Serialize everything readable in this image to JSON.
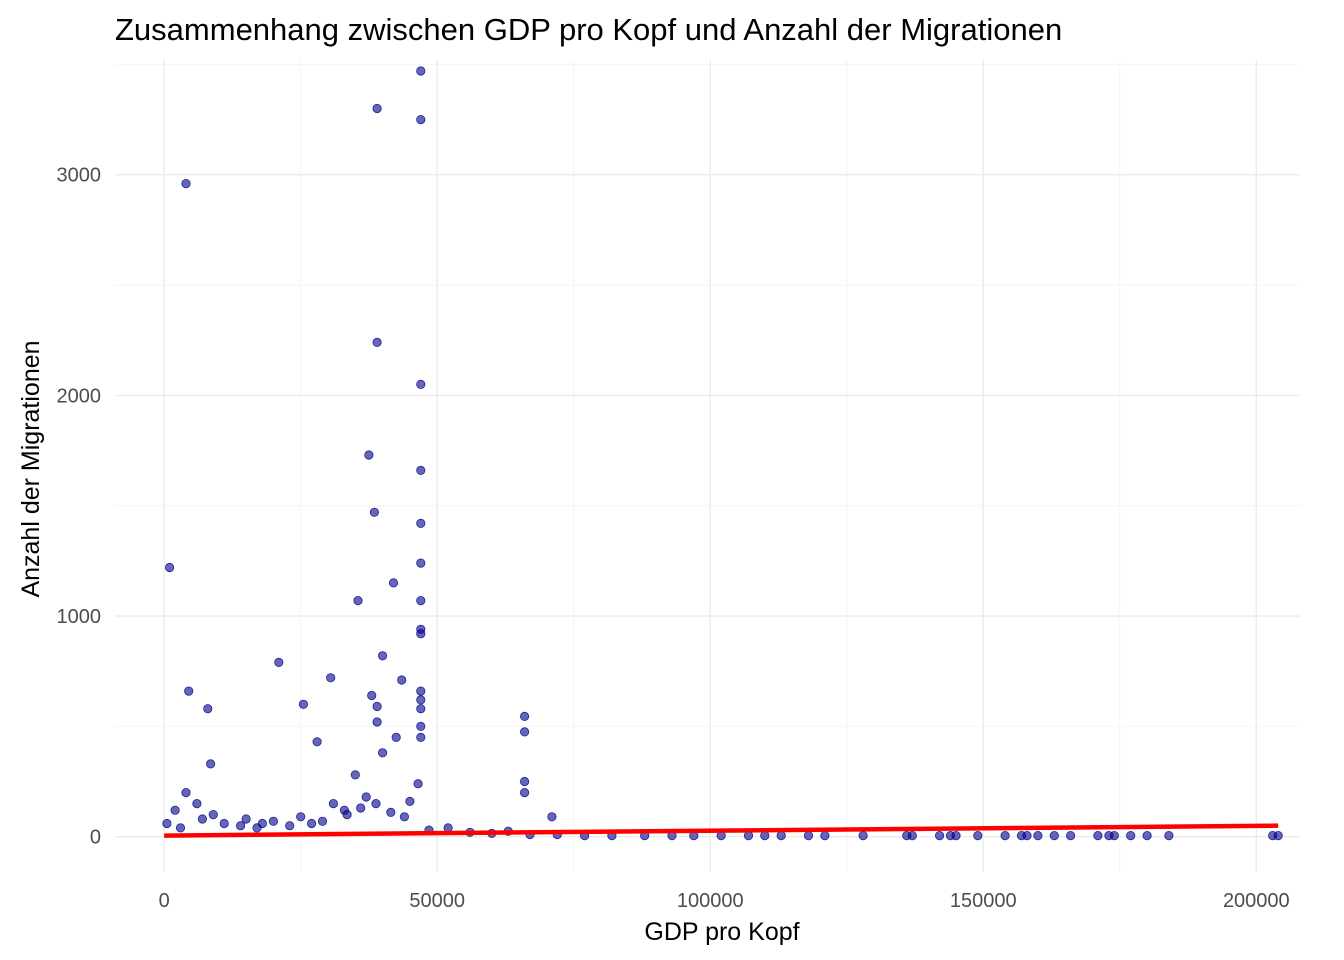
{
  "chart_data": {
    "type": "scatter",
    "title": "Zusammenhang zwischen GDP pro Kopf und Anzahl der Migrationen",
    "xlabel": "GDP pro Kopf",
    "ylabel": "Anzahl der Migrationen",
    "xlim": [
      -9000,
      208000
    ],
    "ylim": [
      -160,
      3520
    ],
    "x_ticks": [
      0,
      50000,
      100000,
      150000,
      200000
    ],
    "x_tick_labels": [
      "0",
      "50000",
      "100000",
      "150000",
      "200000"
    ],
    "y_ticks": [
      0,
      1000,
      2000,
      3000
    ],
    "y_tick_labels": [
      "0",
      "1000",
      "2000",
      "3000"
    ],
    "x_minor_ticks": [
      25000,
      75000,
      125000,
      175000
    ],
    "y_minor_ticks": [
      500,
      1500,
      2500,
      3500
    ],
    "grid": true,
    "legend": "none",
    "point_color": "#00008B",
    "point_opacity": 0.6,
    "trend_color": "#FF0000",
    "series": [
      {
        "values_x": [
          4000,
          1000,
          8000,
          8500,
          4500,
          21000,
          25500,
          30500,
          28000,
          38000,
          39000,
          37500,
          38500,
          39000,
          40000,
          42000,
          43500,
          35500,
          39000,
          42500,
          39000,
          47000,
          47000,
          47000,
          47000,
          47000,
          47000,
          47000,
          47000,
          47000,
          47000,
          47000,
          47000,
          47000,
          47000,
          66000,
          66000,
          66000,
          66000,
          71000,
          2000,
          4000,
          6000,
          9000,
          15000,
          18000,
          20000,
          25000,
          31000,
          33000,
          35000,
          37000,
          40000,
          45000,
          52000,
          56000,
          60000,
          63000,
          67000,
          72000,
          77000,
          82000,
          88000,
          93000,
          97000,
          102000,
          107000,
          110000,
          113000,
          118000,
          121000,
          128000,
          136000,
          137000,
          142000,
          144000,
          145000,
          149000,
          154000,
          157000,
          158000,
          160000,
          163000,
          166000,
          171000,
          173000,
          174000,
          177000,
          180000,
          184000,
          203000,
          204000,
          500,
          3000,
          7000,
          11000,
          14000,
          17000,
          23000,
          27000,
          29000,
          33500,
          36000,
          38800,
          41500,
          44000,
          46500,
          48500
        ],
        "values_y": [
          2960,
          1220,
          580,
          330,
          660,
          790,
          600,
          720,
          430,
          640,
          2240,
          1730,
          1470,
          3300,
          820,
          1150,
          710,
          1070,
          590,
          450,
          520,
          3470,
          3250,
          2050,
          1660,
          1420,
          1240,
          1070,
          940,
          920,
          660,
          620,
          580,
          500,
          450,
          545,
          475,
          250,
          200,
          90,
          120,
          200,
          150,
          100,
          80,
          60,
          70,
          90,
          150,
          120,
          280,
          180,
          380,
          160,
          40,
          20,
          15,
          25,
          10,
          10,
          5,
          5,
          5,
          5,
          5,
          5,
          5,
          5,
          5,
          5,
          5,
          5,
          5,
          5,
          5,
          5,
          5,
          5,
          5,
          5,
          5,
          5,
          5,
          5,
          5,
          5,
          5,
          5,
          5,
          5,
          5,
          5,
          60,
          40,
          80,
          60,
          50,
          40,
          50,
          60,
          70,
          100,
          130,
          150,
          110,
          90,
          240,
          30
        ]
      }
    ],
    "trend_line": {
      "x": [
        0,
        204000
      ],
      "y": [
        5,
        50
      ]
    }
  }
}
